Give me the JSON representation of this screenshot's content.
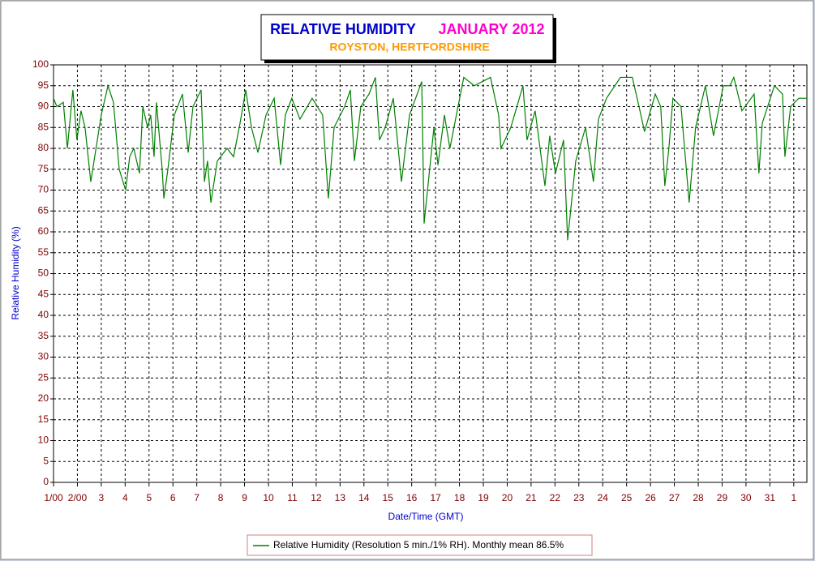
{
  "chart_data": {
    "type": "line",
    "title": "RELATIVE HUMIDITY",
    "period": "JANUARY 2012",
    "subtitle": "ROYSTON, HERTFORDSHIRE",
    "xlabel": "Date/Time (GMT)",
    "ylabel": "Relative Humidity (%)",
    "x": [
      1.0,
      1.14,
      1.41,
      1.58,
      1.81,
      1.98,
      2.15,
      2.32,
      2.56,
      3.0,
      3.28,
      3.51,
      3.75,
      4.02,
      4.19,
      4.36,
      4.6,
      4.74,
      4.94,
      5.07,
      5.21,
      5.31,
      5.55,
      5.62,
      5.79,
      6.06,
      6.4,
      6.64,
      6.84,
      7.18,
      7.32,
      7.45,
      7.59,
      7.86,
      8.27,
      8.54,
      8.81,
      9.05,
      9.29,
      9.56,
      9.9,
      10.24,
      10.51,
      10.71,
      10.98,
      11.32,
      11.83,
      12.27,
      12.51,
      12.75,
      13.19,
      13.43,
      13.6,
      13.87,
      14.21,
      14.48,
      14.65,
      14.89,
      15.23,
      15.57,
      15.91,
      16.42,
      16.52,
      16.93,
      17.1,
      17.37,
      17.6,
      17.94,
      18.18,
      18.62,
      19.3,
      19.64,
      19.74,
      20.15,
      20.66,
      20.83,
      21.17,
      21.58,
      21.78,
      22.02,
      22.36,
      22.53,
      22.87,
      23.28,
      23.61,
      23.82,
      24.16,
      24.74,
      25.24,
      25.52,
      25.75,
      26.2,
      26.43,
      26.6,
      26.77,
      26.94,
      27.28,
      27.62,
      27.89,
      28.3,
      28.64,
      29.05,
      29.32,
      29.49,
      29.83,
      30.34,
      30.54,
      30.68,
      31.19,
      31.53,
      31.63,
      31.87,
      32.21,
      32.55
    ],
    "series": [
      {
        "name": "Relative Humidity (Resolution 5 min./1% RH). Monthly mean 86.5%",
        "color": "#008000",
        "values": [
          92,
          90,
          91,
          80,
          94,
          82,
          89,
          85,
          72,
          88,
          95,
          91,
          75,
          70,
          78,
          80,
          74,
          90,
          85,
          88,
          78,
          91,
          75,
          68,
          75,
          88,
          93,
          79,
          90,
          94,
          72,
          77,
          67,
          77,
          80,
          78,
          86,
          94,
          85,
          79,
          88,
          92,
          76,
          88,
          92,
          87,
          92,
          88,
          68,
          85,
          90,
          94,
          77,
          90,
          93,
          97,
          82,
          85,
          92,
          72,
          88,
          96,
          62,
          85,
          76,
          88,
          80,
          90,
          97,
          95,
          97,
          88,
          80,
          85,
          95,
          82,
          89,
          71,
          83,
          74,
          82,
          58,
          77,
          85,
          72,
          87,
          92,
          97,
          97,
          90,
          84,
          93,
          90,
          71,
          80,
          92,
          90,
          67,
          85,
          95,
          83,
          95,
          95,
          97,
          89,
          93,
          74,
          86,
          95,
          93,
          78,
          90,
          92,
          92
        ]
      }
    ],
    "xlim": [
      1,
      32.55
    ],
    "ylim": [
      0,
      100
    ],
    "xticks": [
      {
        "value": 1,
        "label": "1/00"
      },
      {
        "value": 2,
        "label": "2/00"
      },
      3,
      4,
      5,
      6,
      7,
      8,
      9,
      10,
      11,
      12,
      13,
      14,
      15,
      16,
      17,
      18,
      19,
      20,
      21,
      22,
      23,
      24,
      25,
      26,
      27,
      28,
      29,
      30,
      31,
      {
        "value": 32,
        "label": "1"
      }
    ],
    "yticks": [
      0,
      5,
      10,
      15,
      20,
      25,
      30,
      35,
      40,
      45,
      50,
      55,
      60,
      65,
      70,
      75,
      80,
      85,
      90,
      95,
      100
    ],
    "grid": true
  }
}
